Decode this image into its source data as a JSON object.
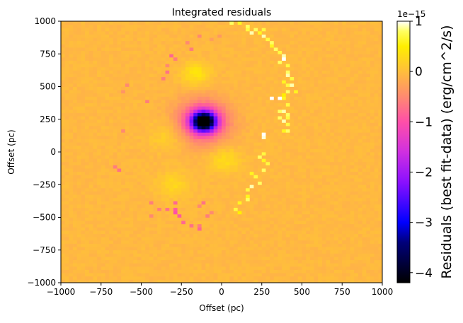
{
  "chart_data": {
    "type": "heatmap",
    "title": "Integrated residuals",
    "xlabel": "Offset (pc)",
    "ylabel": "Offset (pc)",
    "xlim": [
      -1000,
      1000
    ],
    "ylim": [
      -1000,
      1000
    ],
    "x_ticks": [
      -1000,
      -750,
      -500,
      -250,
      0,
      250,
      500,
      750,
      1000
    ],
    "y_ticks": [
      -1000,
      -750,
      -500,
      -250,
      0,
      250,
      500,
      750,
      1000
    ],
    "x_tick_labels": [
      "−1000",
      "−750",
      "−500",
      "−250",
      "0",
      "250",
      "500",
      "750",
      "1000"
    ],
    "y_tick_labels": [
      "−1000",
      "−750",
      "−500",
      "−250",
      "0",
      "250",
      "500",
      "750",
      "1000"
    ],
    "colorbar": {
      "label": "Residuals (best fit-data) (erg/cm^2/s)",
      "offset_text": "1e−15",
      "range": [
        -4.2,
        1.0
      ],
      "ticks": [
        1,
        0,
        -1,
        -2,
        -3,
        -4
      ],
      "tick_labels": [
        "1",
        "0",
        "−1",
        "−2",
        "−3",
        "−4"
      ],
      "colormap": "gnuplot2-like",
      "stops": [
        {
          "v": -4.2,
          "color": "#000000"
        },
        {
          "v": -3.4,
          "color": "#00007a"
        },
        {
          "v": -3.0,
          "color": "#0000ff"
        },
        {
          "v": -2.2,
          "color": "#8a10ff"
        },
        {
          "v": -1.6,
          "color": "#d030e0"
        },
        {
          "v": -1.0,
          "color": "#ff4fa8"
        },
        {
          "v": -0.5,
          "color": "#ff8a70"
        },
        {
          "v": 0.0,
          "color": "#ffbe3c"
        },
        {
          "v": 0.5,
          "color": "#ffee00"
        },
        {
          "v": 0.8,
          "color": "#ffff60"
        },
        {
          "v": 1.0,
          "color": "#ffffff"
        }
      ]
    },
    "background_value": -0.05,
    "units": "1e-15 erg/cm^2/s",
    "features": [
      {
        "kind": "negative_core",
        "x": -110,
        "y": 235,
        "peak": -4.1,
        "sigma": 50
      },
      {
        "kind": "negative_halo",
        "x": -115,
        "y": 235,
        "peak": -1.3,
        "sigma": 110
      },
      {
        "kind": "arc_pos_north",
        "x": -160,
        "y": 600,
        "peak": 0.45,
        "sigma": 60
      },
      {
        "kind": "arc_pos_west",
        "x": -330,
        "y": 130,
        "peak": 0.25,
        "sigma": 80
      },
      {
        "kind": "arc_pos_southwest",
        "x": -300,
        "y": -250,
        "peak": 0.3,
        "sigma": 70
      },
      {
        "kind": "arc_pos_south",
        "x": 20,
        "y": -60,
        "peak": 0.35,
        "sigma": 70
      }
    ],
    "sparse_pixels": [
      [
        50,
        1000,
        0.7
      ],
      [
        70,
        980,
        0.8
      ],
      [
        100,
        980,
        0.6
      ],
      [
        150,
        960,
        0.8
      ],
      [
        170,
        940,
        0.7
      ],
      [
        190,
        920,
        0.9
      ],
      [
        220,
        940,
        0.8
      ],
      [
        250,
        930,
        0.7
      ],
      [
        230,
        900,
        0.6
      ],
      [
        260,
        880,
        0.9
      ],
      [
        280,
        860,
        0.7
      ],
      [
        310,
        840,
        0.8
      ],
      [
        300,
        810,
        0.6
      ],
      [
        330,
        790,
        0.8
      ],
      [
        360,
        770,
        0.7
      ],
      [
        380,
        740,
        0.9
      ],
      [
        390,
        700,
        1.0
      ],
      [
        370,
        680,
        0.8
      ],
      [
        400,
        650,
        0.7
      ],
      [
        410,
        620,
        0.8
      ],
      [
        420,
        590,
        0.9
      ],
      [
        430,
        550,
        0.7
      ],
      [
        380,
        530,
        0.6
      ],
      [
        410,
        510,
        0.7
      ],
      [
        440,
        500,
        0.9
      ],
      [
        420,
        470,
        0.8
      ],
      [
        450,
        460,
        0.6
      ],
      [
        380,
        440,
        0.5
      ],
      [
        300,
        420,
        0.7
      ],
      [
        320,
        420,
        1.0
      ],
      [
        350,
        420,
        1.0
      ],
      [
        390,
        400,
        0.6
      ],
      [
        400,
        350,
        0.7
      ],
      [
        360,
        300,
        0.8
      ],
      [
        380,
        300,
        0.9
      ],
      [
        400,
        290,
        0.8
      ],
      [
        420,
        260,
        0.7
      ],
      [
        370,
        250,
        0.8
      ],
      [
        390,
        230,
        0.9
      ],
      [
        400,
        200,
        0.7
      ],
      [
        420,
        170,
        0.8
      ],
      [
        380,
        150,
        0.6
      ],
      [
        260,
        130,
        1.0
      ],
      [
        270,
        110,
        0.95
      ],
      [
        260,
        -20,
        0.7
      ],
      [
        230,
        -30,
        0.8
      ],
      [
        250,
        -70,
        0.6
      ],
      [
        290,
        -100,
        0.7
      ],
      [
        270,
        -150,
        0.8
      ],
      [
        180,
        -170,
        0.6
      ],
      [
        200,
        -190,
        0.7
      ],
      [
        230,
        -230,
        0.8
      ],
      [
        190,
        -260,
        0.9
      ],
      [
        160,
        -300,
        0.7
      ],
      [
        170,
        -330,
        0.6
      ],
      [
        150,
        -360,
        0.8
      ],
      [
        120,
        -400,
        0.6
      ],
      [
        90,
        -430,
        0.7
      ],
      [
        100,
        -460,
        0.5
      ],
      [
        -290,
        -400,
        -0.8
      ],
      [
        -290,
        -430,
        -0.9
      ],
      [
        -280,
        -460,
        -1.0
      ],
      [
        -260,
        -500,
        -0.9
      ],
      [
        -230,
        -540,
        -0.8
      ],
      [
        -200,
        -560,
        -0.7
      ],
      [
        -140,
        -560,
        -0.6
      ],
      [
        -140,
        -590,
        -0.8
      ],
      [
        -340,
        -440,
        -0.7
      ],
      [
        -400,
        -430,
        -0.6
      ],
      [
        -450,
        -490,
        -0.5
      ],
      [
        -440,
        -380,
        -0.6
      ],
      [
        -150,
        -420,
        -0.5
      ],
      [
        -90,
        -500,
        -0.6
      ],
      [
        -60,
        -470,
        -0.5
      ],
      [
        -110,
        -390,
        -0.7
      ],
      [
        -640,
        -150,
        -0.7
      ],
      [
        -670,
        -120,
        -0.6
      ],
      [
        -620,
        160,
        -0.5
      ],
      [
        -470,
        380,
        -0.6
      ],
      [
        -360,
        560,
        -0.6
      ],
      [
        -330,
        620,
        -0.7
      ],
      [
        -340,
        650,
        -0.5
      ],
      [
        -310,
        740,
        -0.8
      ],
      [
        -290,
        700,
        -0.6
      ],
      [
        -200,
        780,
        -0.6
      ],
      [
        -220,
        830,
        -0.5
      ],
      [
        -130,
        880,
        -0.5
      ],
      [
        -590,
        500,
        -0.5
      ],
      [
        -610,
        470,
        -0.4
      ],
      [
        -60,
        860,
        -0.3
      ],
      [
        -20,
        880,
        -0.35
      ]
    ]
  }
}
